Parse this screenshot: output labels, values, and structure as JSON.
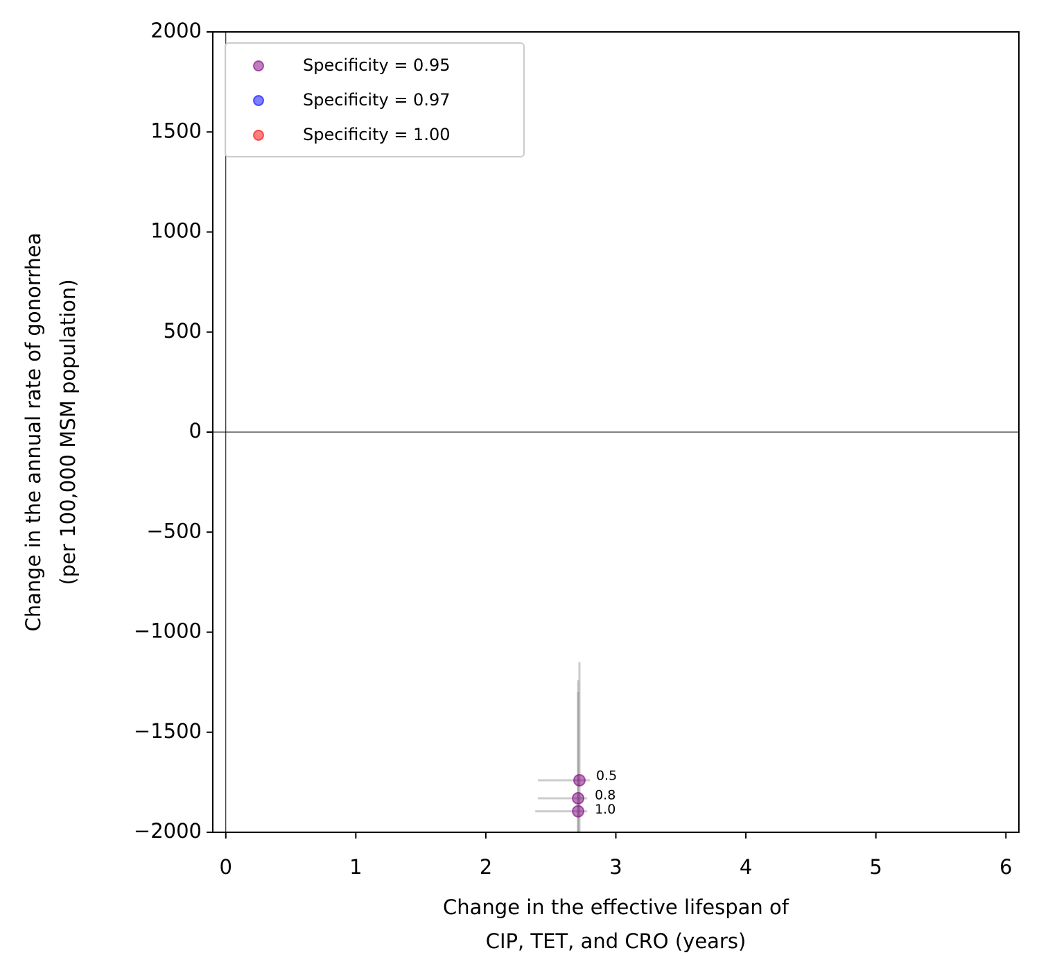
{
  "chart_data": {
    "type": "scatter",
    "xlabel": [
      "Change in the effective lifespan of",
      "CIP, TET, and CRO (years)"
    ],
    "ylabel": [
      "Change in the annual rate of gonorrhea",
      "(per 100,000 MSM population)"
    ],
    "xlim": [
      -0.1,
      6.1
    ],
    "xticks": [
      0,
      1,
      2,
      3,
      4,
      5,
      6
    ],
    "ylim": [
      -2000,
      2000
    ],
    "yticks": [
      {
        "value": -2000,
        "label": "−2000"
      },
      {
        "value": -1500,
        "label": "−1500"
      },
      {
        "value": -1000,
        "label": "−1000"
      },
      {
        "value": -500,
        "label": "−500"
      },
      0,
      500,
      1000,
      1500,
      2000
    ],
    "hlines": [
      0
    ],
    "vlines": [
      0
    ],
    "legend": "upper left",
    "series": [
      {
        "name": "Specificity = 0.95",
        "color": "#800080",
        "x": [
          2.72,
          2.71,
          2.71
        ],
        "y": [
          -1740,
          -1830,
          -1895
        ],
        "x_low": [
          2.4,
          2.4,
          2.38
        ],
        "x_high": [
          2.8,
          2.78,
          2.78
        ],
        "y_low": [
          -2200,
          -2200,
          -2200
        ],
        "y_high": [
          -1150,
          -1240,
          -1300
        ],
        "point_labels": [
          "0.5",
          "0.8",
          "1.0"
        ]
      },
      {
        "name": "Specificity = 0.97",
        "color": "#0000ff",
        "x": [],
        "y": [],
        "x_low": [],
        "x_high": [],
        "y_low": [],
        "y_high": [],
        "point_labels": []
      },
      {
        "name": "Specificity = 1.00",
        "color": "#ff0000",
        "x": [],
        "y": [],
        "x_low": [],
        "x_high": [],
        "y_low": [],
        "y_high": [],
        "point_labels": []
      }
    ]
  }
}
